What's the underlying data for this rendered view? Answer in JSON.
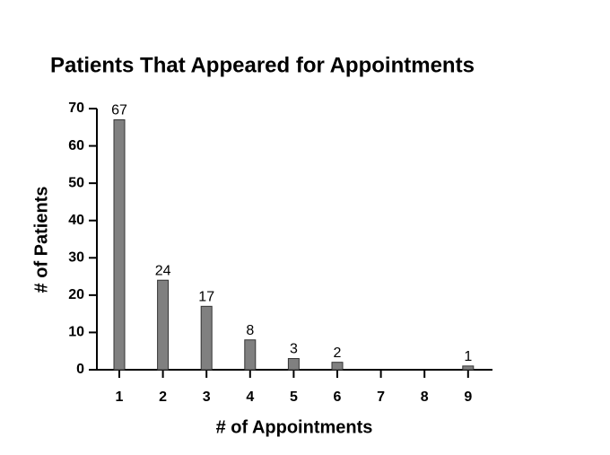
{
  "chart_data": {
    "type": "bar",
    "title": "Patients That Appeared for Appointments",
    "x_label": "# of Appointments",
    "y_label": "# of Patients",
    "categories": [
      "1",
      "2",
      "3",
      "4",
      "5",
      "6",
      "7",
      "8",
      "9"
    ],
    "values": [
      67,
      24,
      17,
      8,
      3,
      2,
      0,
      0,
      1
    ],
    "color": "#808080",
    "ylim": [
      0,
      70
    ],
    "yticks": [
      0,
      10,
      20,
      30,
      40,
      50,
      60,
      70
    ],
    "grid": false
  }
}
